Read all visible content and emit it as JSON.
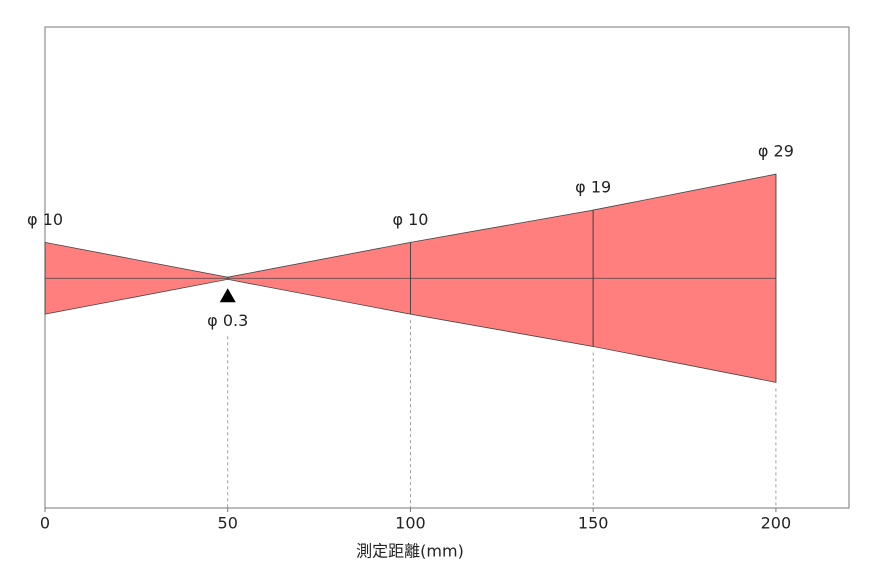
{
  "chart_data": {
    "type": "beam",
    "x_label": "測定距離(mm)",
    "x": [
      0,
      50,
      100,
      150,
      200
    ],
    "values": [
      10,
      0.3,
      10,
      19,
      29
    ],
    "value_labels": [
      "φ 10",
      "φ 0.3",
      "φ 10",
      "φ 19",
      "φ 29"
    ],
    "color": "#ff7f7f",
    "xlim": [
      0,
      220
    ],
    "xticks": [
      0,
      50,
      100,
      150,
      200
    ],
    "ylim": [
      -32,
      35
    ]
  }
}
